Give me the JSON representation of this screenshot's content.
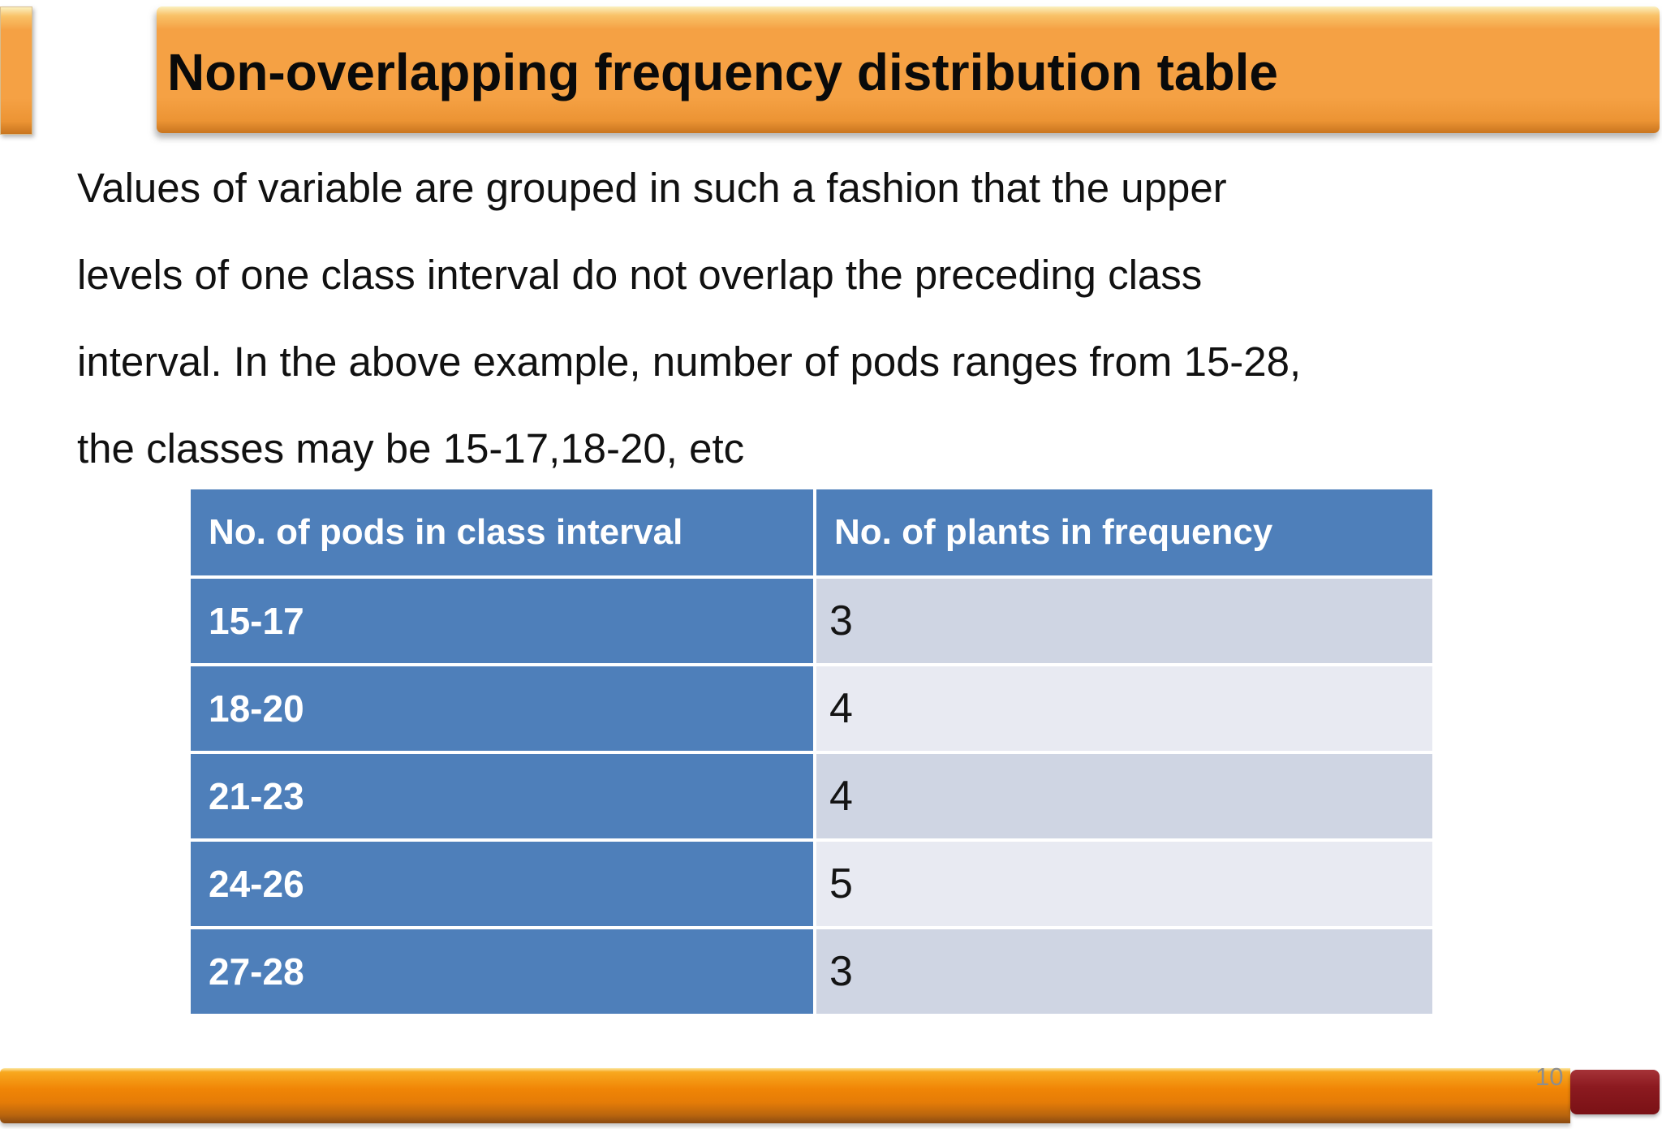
{
  "slide": {
    "title": "Non-overlapping frequency distribution table",
    "body_lines": [
      "Values of variable are grouped in such a fashion that the upper",
      "levels of one class interval do not overlap the preceding class",
      "interval. In the above example, number of pods ranges from 15-28,",
      "the classes may be 15-17,18-20, etc"
    ],
    "page_number": "10"
  },
  "table": {
    "headers": [
      "No. of pods in class interval",
      "No. of plants in frequency"
    ],
    "rows": [
      {
        "interval": "15-17",
        "frequency": "3"
      },
      {
        "interval": "18-20",
        "frequency": "4"
      },
      {
        "interval": "21-23",
        "frequency": "4"
      },
      {
        "interval": "24-26",
        "frequency": "5"
      },
      {
        "interval": "27-28",
        "frequency": "3"
      }
    ]
  },
  "colors": {
    "banner_orange": "#f5a144",
    "banner_highlight": "#fbf0bf",
    "banner_edge": "#c9751f",
    "table_header_blue": "#4e7fba",
    "band_dark": "#cfd5e3",
    "band_light": "#e8eaf2",
    "footer_orange_top": "#f8a81f",
    "footer_orange_mid": "#f08506",
    "footer_orange_dark": "#8a4a12",
    "accent_maroon": "#8c1a20",
    "page_number_gray": "#8e8e8e",
    "text_black": "#111111"
  }
}
